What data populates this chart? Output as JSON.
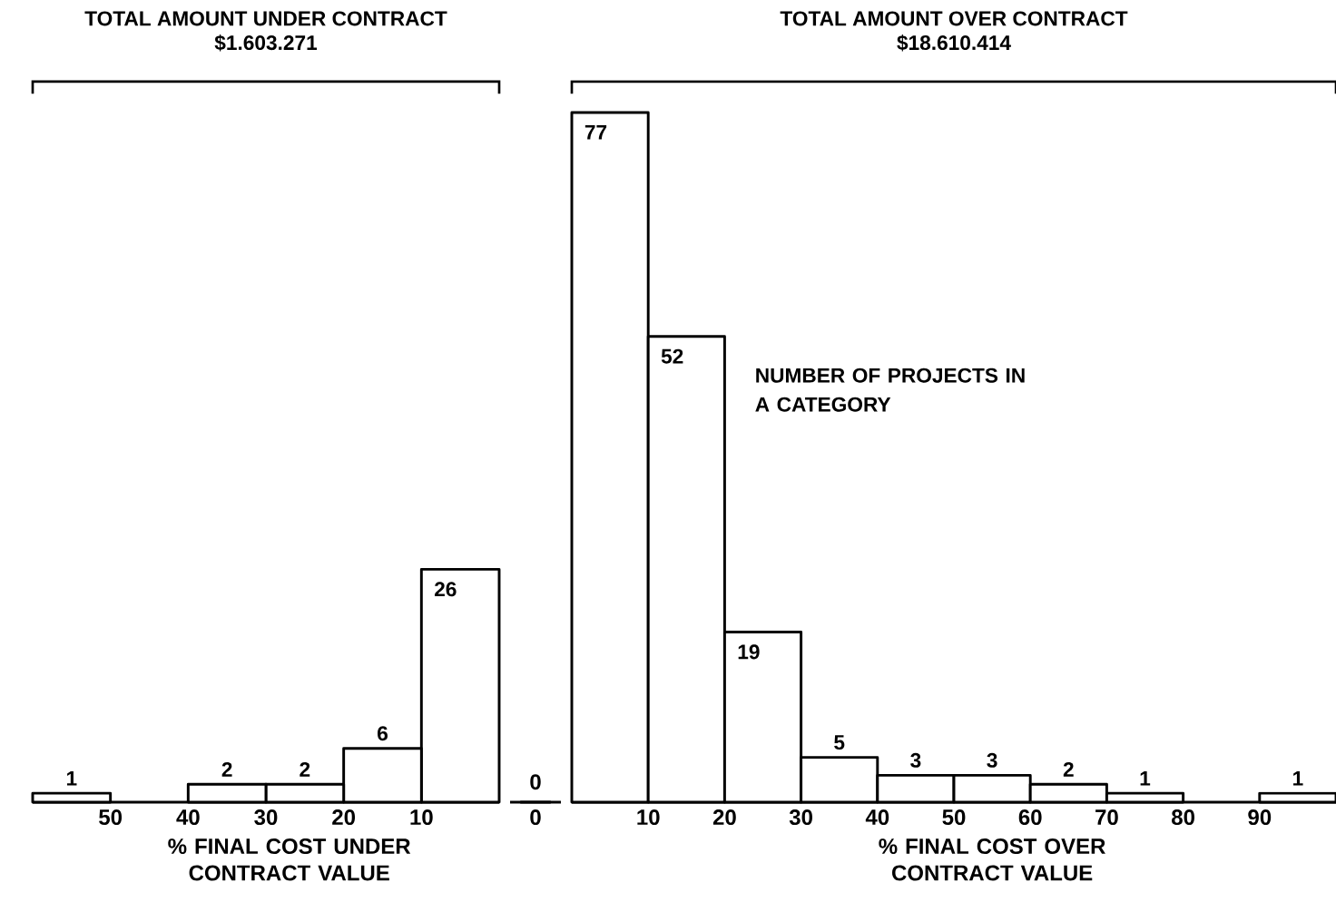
{
  "chart_data": [
    {
      "type": "bar",
      "title": "TOTAL AMOUNT UNDER CONTRACT",
      "subtitle": "$1.603.271",
      "xlabel": "% FINAL COST UNDER CONTRACT VALUE",
      "x": [
        5,
        15,
        25,
        35,
        45,
        55
      ],
      "values": [
        26,
        6,
        2,
        2,
        null,
        1
      ],
      "data_labels": true,
      "xlim": [
        60,
        0
      ],
      "xticks": [
        50,
        40,
        30,
        20,
        10
      ],
      "color": "#ffffff",
      "tick_labels": "x"
    },
    {
      "type": "other",
      "categories": [
        "0"
      ],
      "values": [
        0
      ],
      "value_labels": [
        "0"
      ],
      "color": "#ffffff"
    },
    {
      "type": "bar",
      "title": "TOTAL AMOUNT OVER CONTRACT",
      "subtitle": "$18.610.414",
      "xlabel": "% FINAL COST OVER CONTRACT VALUE",
      "x": [
        5,
        15,
        25,
        35,
        45,
        55,
        65,
        75,
        85,
        95
      ],
      "values": [
        77,
        52,
        19,
        5,
        3,
        3,
        2,
        1,
        null,
        1
      ],
      "data_labels": true,
      "xlim": [
        0,
        100
      ],
      "xticks": [
        10,
        20,
        30,
        40,
        50,
        60,
        70,
        80,
        90
      ],
      "color": "#ffffff",
      "tick_labels": "x",
      "annotations": [
        "NUMBER OF PROJECTS IN A CATEGORY"
      ]
    }
  ]
}
